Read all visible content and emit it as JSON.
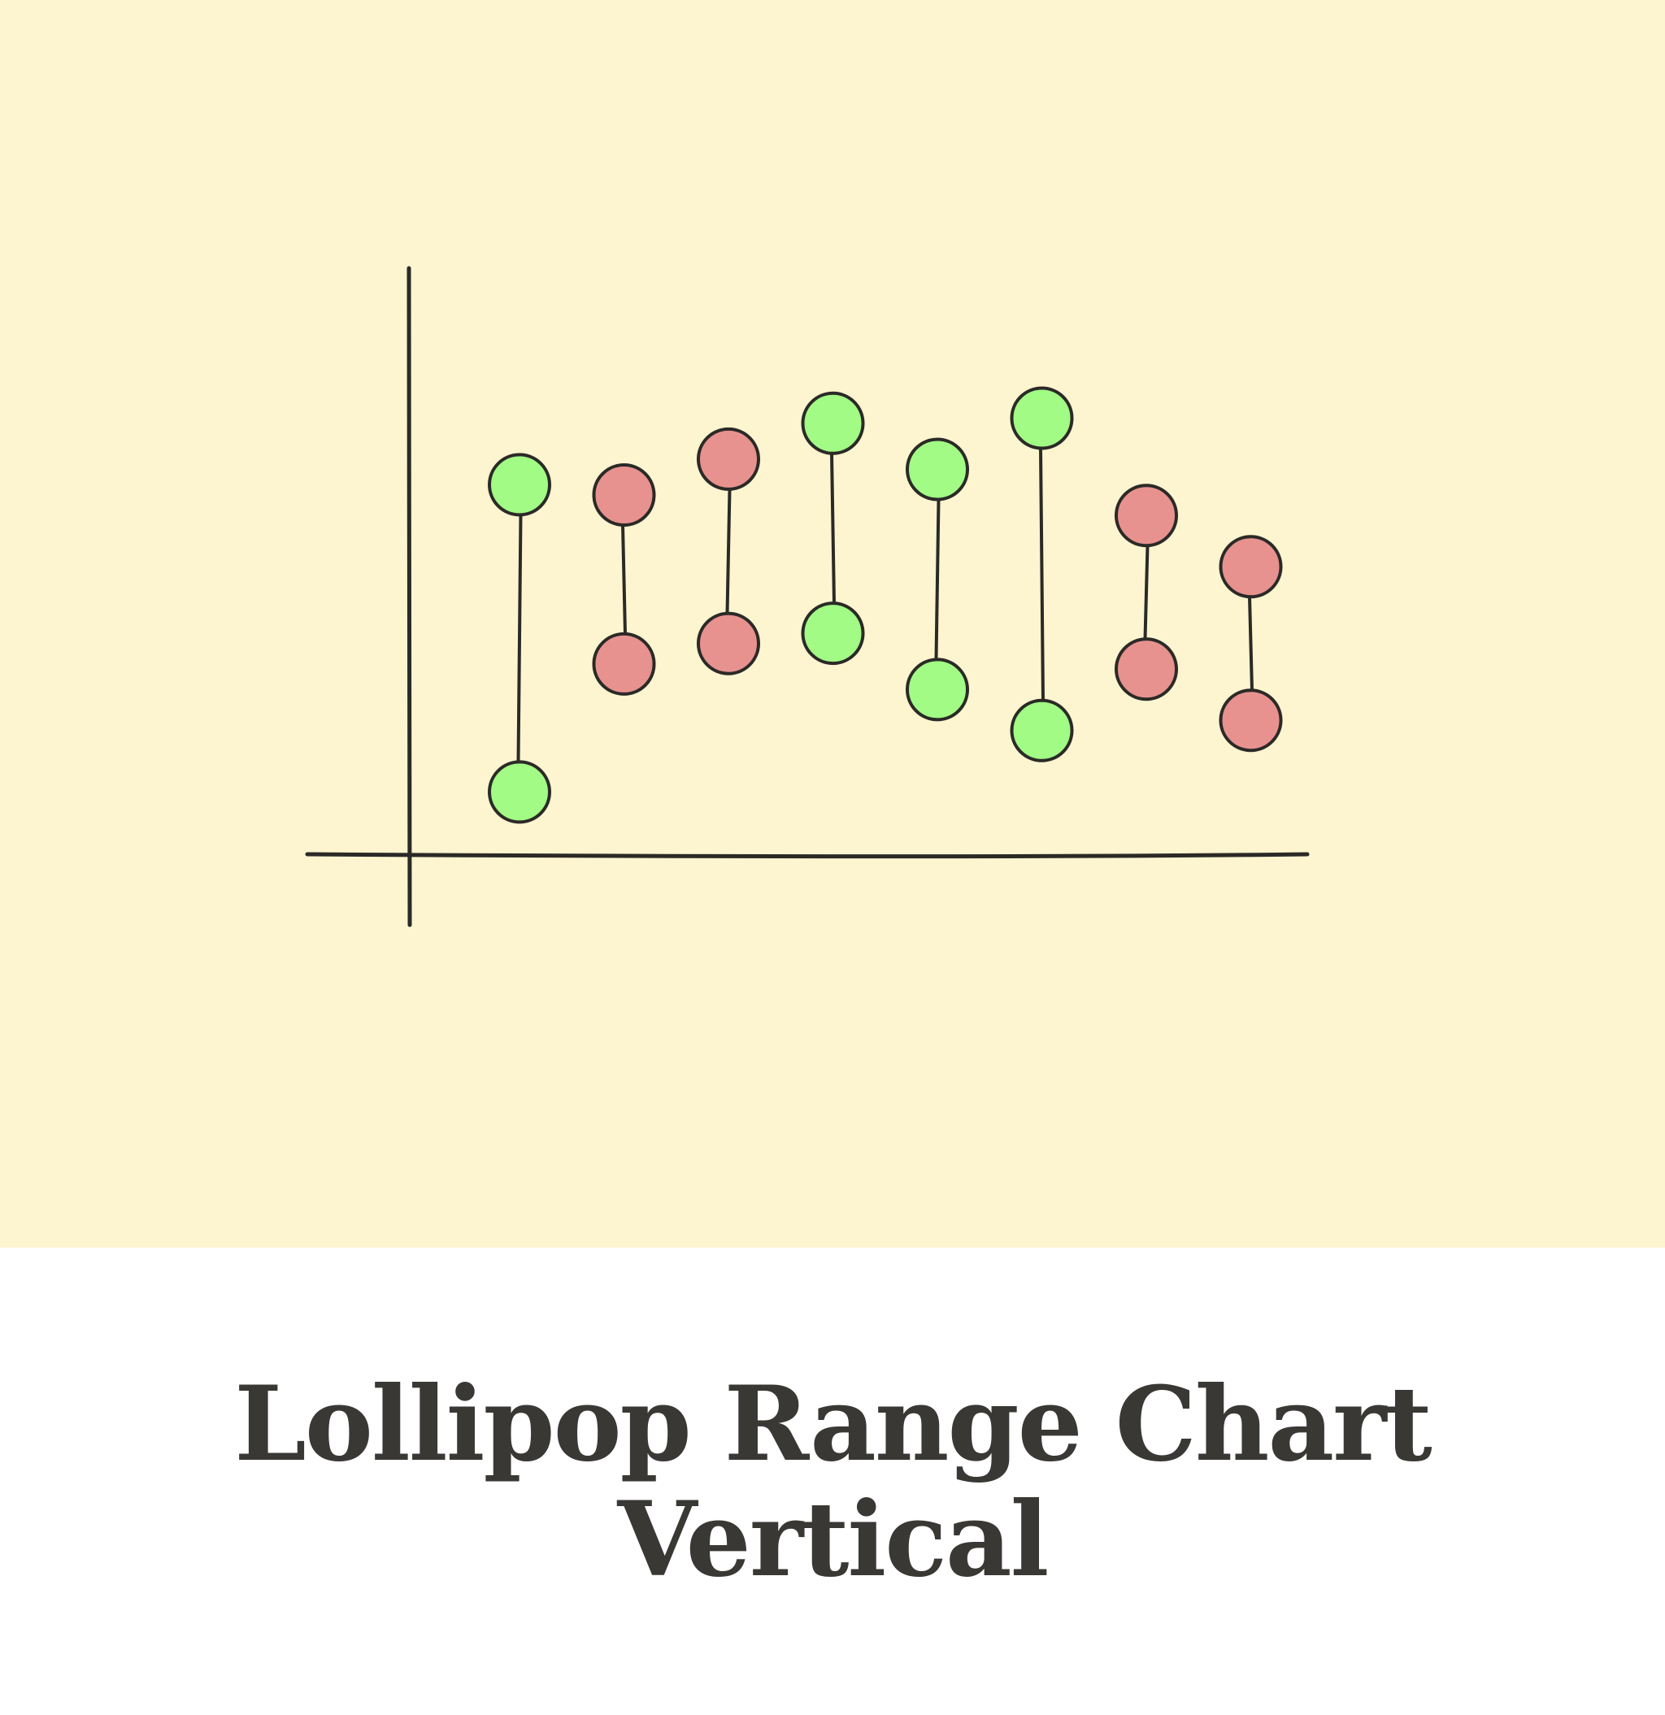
{
  "colors": {
    "panel_background": "#fdf5cf",
    "caption_background": "#ffffff",
    "ink": "#2b2a27",
    "title_text": "#3a3835",
    "increase": "#a1fb85",
    "decrease": "#e89290"
  },
  "title": {
    "line1": "Lollipop Range Chart",
    "line2": "Vertical"
  },
  "chart_data": {
    "type": "lollipop-range",
    "orientation": "vertical",
    "axis_labels_printed": false,
    "grid": false,
    "legend": "none",
    "ylim": [
      0,
      100
    ],
    "marker_colors": {
      "green": "#a1fb85",
      "red": "#e89290"
    },
    "ranges": [
      {
        "start": 12,
        "end": 72,
        "color": "green"
      },
      {
        "start": 37,
        "end": 70,
        "color": "red"
      },
      {
        "start": 41,
        "end": 77,
        "color": "red"
      },
      {
        "start": 43,
        "end": 84,
        "color": "green"
      },
      {
        "start": 32,
        "end": 75,
        "color": "green"
      },
      {
        "start": 24,
        "end": 85,
        "color": "green"
      },
      {
        "start": 36,
        "end": 66,
        "color": "red"
      },
      {
        "start": 26,
        "end": 56,
        "color": "red"
      }
    ]
  }
}
